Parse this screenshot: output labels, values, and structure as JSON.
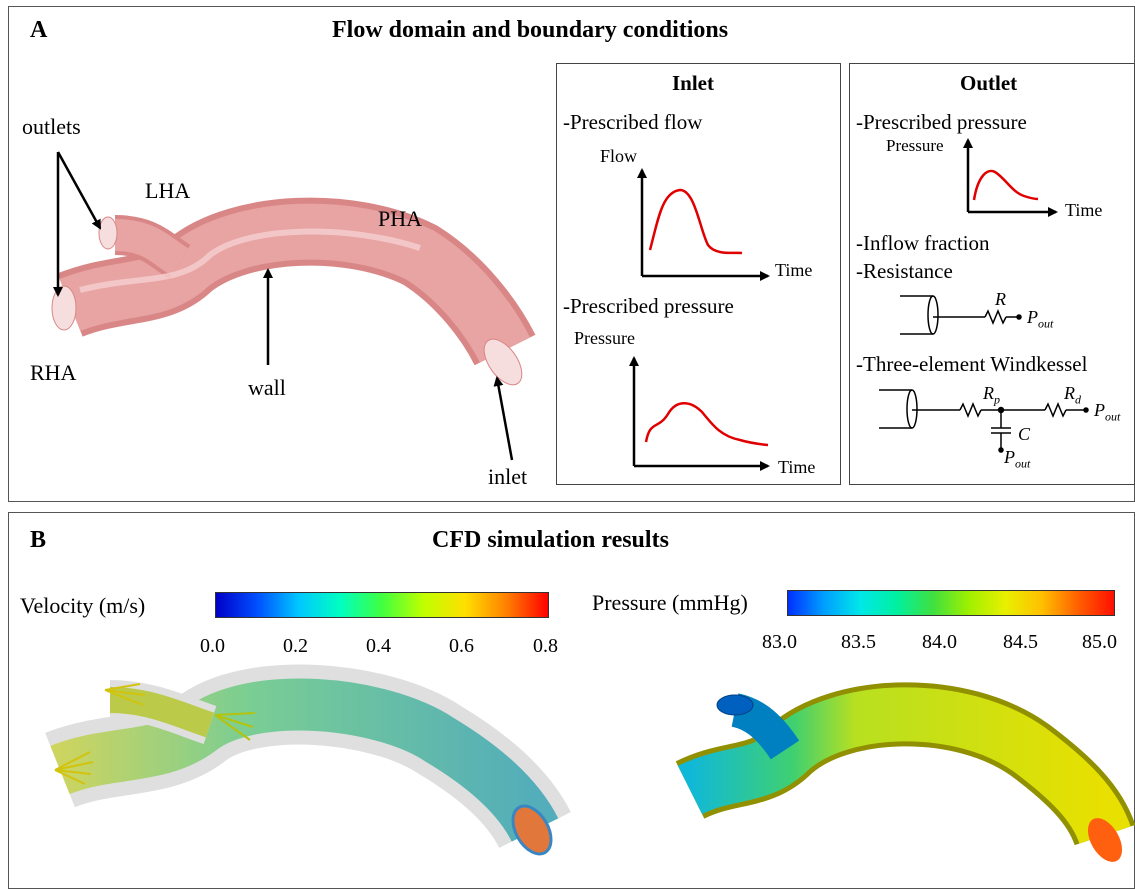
{
  "panel_a": {
    "letter": "A",
    "title": "Flow domain and boundary conditions",
    "vessel_labels": {
      "outlets": "outlets",
      "lha": "LHA",
      "pha": "PHA",
      "rha": "RHA",
      "wall": "wall",
      "inlet": "inlet"
    },
    "inlet_box": {
      "heading": "Inlet",
      "item1": "-Prescribed flow",
      "flow_ylabel": "Flow",
      "flow_xlabel": "Time",
      "item2": "-Prescribed pressure",
      "pressure_ylabel": "Pressure",
      "pressure_xlabel": "Time"
    },
    "outlet_box": {
      "heading": "Outlet",
      "item1": "-Prescribed pressure",
      "pressure_ylabel": "Pressure",
      "pressure_xlabel": "Time",
      "item2": "-Inflow fraction",
      "item3": "-Resistance",
      "r_label": "R",
      "pout_main": "P",
      "pout_sub": "out",
      "item4": "-Three-element Windkessel",
      "rp_main": "R",
      "rp_sub": "p",
      "rd_main": "R",
      "rd_sub": "d",
      "c_label": "C"
    },
    "curve_color": "#e00000",
    "vessel_color": "#e8a3a3"
  },
  "panel_b": {
    "letter": "B",
    "title": "CFD simulation results",
    "velocity": {
      "label": "Velocity (m/s)",
      "ticks": [
        "0.0",
        "0.2",
        "0.4",
        "0.6",
        "0.8"
      ]
    },
    "pressure": {
      "label": "Pressure (mmHg)",
      "ticks": [
        "83.0",
        "83.5",
        "84.0",
        "84.5",
        "85.0"
      ]
    }
  }
}
